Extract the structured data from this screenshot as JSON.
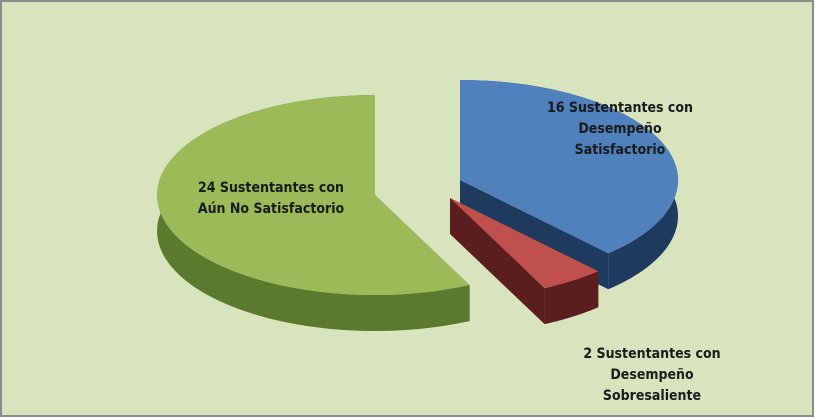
{
  "chart_data": {
    "type": "pie",
    "categories": [
      null,
      null,
      null
    ],
    "values": [
      16,
      2,
      24
    ],
    "value_labels": [
      "16 Sustentantes con Desempeño Satisfactorio",
      "2 Sustentantes con Desempeño Sobresaliente",
      "24 Sustentantes con Aún No Satisfactorio"
    ],
    "colors": [
      "#4f81bd",
      "#c0504d",
      "#9bbb59"
    ],
    "side_colors": [
      "#1f3a5f",
      "#5a1e1e",
      "#5c7a2e"
    ]
  }
}
